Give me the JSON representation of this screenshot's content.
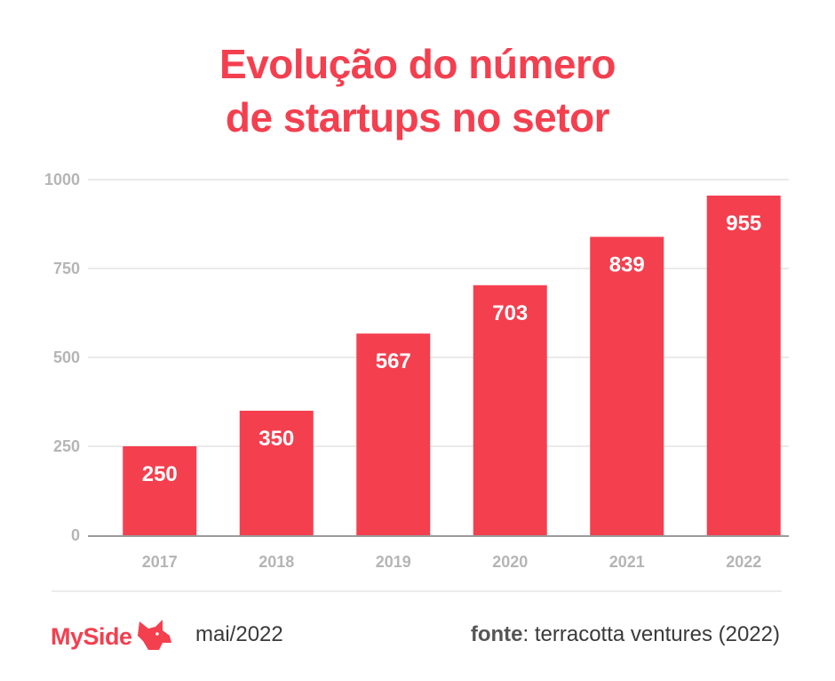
{
  "title": {
    "line1": "Evolução do número",
    "line2": "de startups no setor"
  },
  "chart_data": {
    "type": "bar",
    "categories": [
      "2017",
      "2018",
      "2019",
      "2020",
      "2021",
      "2022"
    ],
    "values": [
      250,
      350,
      567,
      703,
      839,
      955
    ],
    "title": "Evolução do número de startups no setor",
    "xlabel": "",
    "ylabel": "",
    "ylim": [
      0,
      1000
    ],
    "yticks": [
      0,
      250,
      500,
      750,
      1000
    ],
    "grid": true,
    "data_labels": true
  },
  "colors": {
    "accent": "#f43f4f",
    "grid": "#e4e4e4",
    "axis": "#9a9a9a",
    "tick_label": "#b5b5b5",
    "bar_label": "#ffffff",
    "text": "#3a3a3a"
  },
  "footer": {
    "brand": "MySide",
    "brand_icon": "dog-head-icon",
    "date": "mai/2022",
    "source_label": "fonte",
    "source_text": ": terracotta ventures (2022)"
  }
}
